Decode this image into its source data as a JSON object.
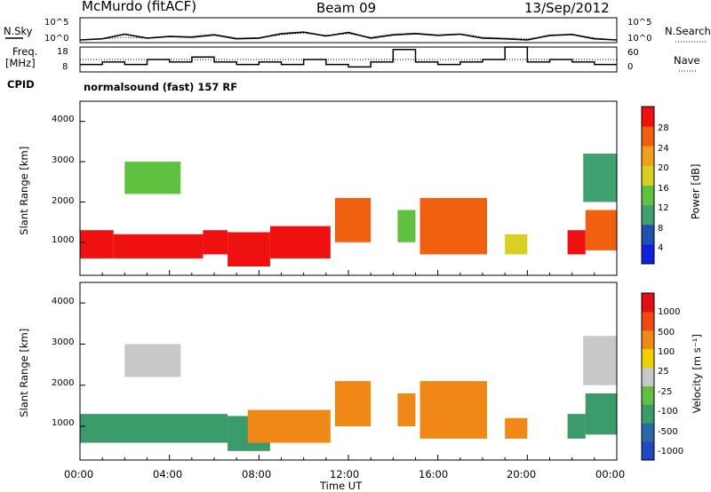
{
  "header": {
    "station": "McMurdo (fitACF)",
    "beam": "Beam 09",
    "date": "13/Sep/2012"
  },
  "panels": {
    "noise": {
      "left_label": "N.Sky",
      "right_label": "N.Search",
      "left_ticks": [
        "10^5",
        "10^0"
      ],
      "right_ticks": [
        "10^5",
        "10^0"
      ]
    },
    "freq": {
      "left_label": "Freq.",
      "left_unit": "[MHz]",
      "right_label": "Nave",
      "left_ticks": [
        "18",
        "8"
      ],
      "right_ticks": [
        "60",
        "0"
      ]
    },
    "cpid": {
      "label": "CPID",
      "text": "normalsound (fast) 157 RF"
    },
    "power": {
      "ylabel": "Slant Range [km]",
      "yticks": [
        "4000",
        "3000",
        "2000",
        "1000"
      ],
      "colorbar_label": "Power [dB]",
      "colorbar_ticks": [
        "28",
        "24",
        "20",
        "16",
        "12",
        "8",
        "4"
      ]
    },
    "velocity": {
      "ylabel": "Slant Range [km]",
      "yticks": [
        "4000",
        "3000",
        "2000",
        "1000"
      ],
      "colorbar_label": "Velocity [m s⁻¹]",
      "colorbar_ticks": [
        "1000",
        "500",
        "100",
        "25",
        "-25",
        "-100",
        "-500",
        "-1000"
      ]
    },
    "xaxis": {
      "label": "Time UT",
      "ticks": [
        "00:00",
        "04:00",
        "08:00",
        "12:00",
        "16:00",
        "20:00",
        "00:00"
      ]
    }
  },
  "colors": {
    "power_scale": [
      "#1020e0",
      "#2050b0",
      "#40a070",
      "#60c040",
      "#d8d020",
      "#f0a020",
      "#f06010",
      "#f01010"
    ],
    "velocity_scale": [
      "#2048c0",
      "#2a68a8",
      "#3a9a6a",
      "#60c040",
      "#c8c8c8",
      "#f0d000",
      "#f08818",
      "#f04810",
      "#e01010"
    ]
  },
  "chart_data": [
    {
      "type": "line",
      "title": "McMurdo (fitACF)",
      "xlabel": "",
      "ylabel": "N.Sky",
      "x": [
        "00:00",
        "01:00",
        "02:00",
        "03:00",
        "04:00",
        "05:00",
        "06:00",
        "07:00",
        "08:00",
        "09:00",
        "10:00",
        "11:00",
        "12:00",
        "13:00",
        "14:00",
        "15:00",
        "16:00",
        "17:00",
        "18:00",
        "19:00",
        "20:00",
        "21:00",
        "22:00",
        "23:00",
        "24:00"
      ],
      "series": [
        {
          "values": [
            1,
            2,
            30,
            3,
            8,
            5,
            20,
            2,
            3,
            40,
            100,
            10,
            80,
            3,
            20,
            40,
            15,
            30,
            3,
            2,
            1,
            15,
            25,
            2,
            1
          ]
        },
        {
          "values": [
            1,
            2,
            5,
            3,
            10,
            8,
            30,
            3,
            4,
            20,
            60,
            15,
            40,
            5,
            30,
            60,
            20,
            40,
            5,
            3,
            2,
            10,
            30,
            3,
            1
          ],
          "style": "dotted"
        }
      ]
    },
    {
      "type": "line",
      "xlabel": "",
      "ylabel": "Freq. [MHz]",
      "ylim": [
        8,
        18
      ],
      "x": [
        "00:00",
        "01:00",
        "02:00",
        "03:00",
        "04:00",
        "05:00",
        "06:00",
        "07:00",
        "08:00",
        "09:00",
        "10:00",
        "11:00",
        "12:00",
        "13:00",
        "14:00",
        "15:00",
        "16:00",
        "17:00",
        "18:00",
        "19:00",
        "20:00",
        "21:00",
        "22:00",
        "23:00",
        "24:00"
      ],
      "series": [
        {
          "values": [
            11,
            12,
            11,
            13,
            12,
            14,
            12,
            11,
            12,
            11,
            13,
            11,
            10,
            12,
            17,
            12,
            11,
            12,
            13,
            18,
            12,
            13,
            12,
            11,
            11
          ]
        },
        {
          "values": [
            13,
            13,
            13,
            13,
            13,
            13,
            13,
            13,
            13,
            13,
            13,
            13,
            13,
            13,
            13,
            13,
            13,
            13,
            13,
            13,
            13,
            13,
            13,
            13,
            13
          ],
          "style": "dotted"
        }
      ]
    },
    {
      "type": "heatmap",
      "xlabel": "Time UT",
      "ylabel": "Slant Range [km]",
      "ylim": [
        180,
        4500
      ],
      "quantity": "Power [dB]",
      "x_range": [
        "00:00",
        "24:00"
      ],
      "range_bands": [
        {
          "t": [
            0,
            1.5
          ],
          "r": [
            600,
            1300
          ],
          "level": 7
        },
        {
          "t": [
            1.5,
            5.5
          ],
          "r": [
            600,
            1200
          ],
          "level": 7
        },
        {
          "t": [
            5.5,
            6.6
          ],
          "r": [
            700,
            1300
          ],
          "level": 7
        },
        {
          "t": [
            6.6,
            8.5
          ],
          "r": [
            400,
            1250
          ],
          "level": 7
        },
        {
          "t": [
            8.5,
            11.2
          ],
          "r": [
            600,
            1400
          ],
          "level": 7
        },
        {
          "t": [
            11.4,
            13.0
          ],
          "r": [
            1000,
            2100
          ],
          "level": 6
        },
        {
          "t": [
            14.2,
            15.0
          ],
          "r": [
            1000,
            1800
          ],
          "level": 3
        },
        {
          "t": [
            15.2,
            18.2
          ],
          "r": [
            700,
            2100
          ],
          "level": 6
        },
        {
          "t": [
            19.0,
            20.0
          ],
          "r": [
            700,
            1200
          ],
          "level": 4
        },
        {
          "t": [
            21.8,
            22.6
          ],
          "r": [
            700,
            1300
          ],
          "level": 7
        },
        {
          "t": [
            22.6,
            24.0
          ],
          "r": [
            800,
            1800
          ],
          "level": 6
        },
        {
          "t": [
            2.0,
            4.5
          ],
          "r": [
            2200,
            3000
          ],
          "level": 3
        },
        {
          "t": [
            22.5,
            24.0
          ],
          "r": [
            2000,
            3200
          ],
          "level": 2
        }
      ]
    },
    {
      "type": "heatmap",
      "xlabel": "Time UT",
      "ylabel": "Slant Range [km]",
      "ylim": [
        180,
        4500
      ],
      "quantity": "Velocity [m s^-1]",
      "x_range": [
        "00:00",
        "24:00"
      ],
      "range_bands": [
        {
          "t": [
            0,
            6.6
          ],
          "r": [
            600,
            1300
          ],
          "level": 2
        },
        {
          "t": [
            6.6,
            8.5
          ],
          "r": [
            400,
            1250
          ],
          "level": 2
        },
        {
          "t": [
            7.5,
            11.2
          ],
          "r": [
            600,
            1400
          ],
          "level": 6
        },
        {
          "t": [
            11.4,
            13.0
          ],
          "r": [
            1000,
            2100
          ],
          "level": 6
        },
        {
          "t": [
            14.2,
            15.0
          ],
          "r": [
            1000,
            1800
          ],
          "level": 6
        },
        {
          "t": [
            15.2,
            18.2
          ],
          "r": [
            700,
            2100
          ],
          "level": 6
        },
        {
          "t": [
            19.0,
            20.0
          ],
          "r": [
            700,
            1200
          ],
          "level": 6
        },
        {
          "t": [
            21.8,
            22.6
          ],
          "r": [
            700,
            1300
          ],
          "level": 2
        },
        {
          "t": [
            22.6,
            24.0
          ],
          "r": [
            800,
            1800
          ],
          "level": 2
        },
        {
          "t": [
            2.0,
            4.5
          ],
          "r": [
            2200,
            3000
          ],
          "level": 4
        },
        {
          "t": [
            22.5,
            24.0
          ],
          "r": [
            2000,
            3200
          ],
          "level": 4
        }
      ]
    }
  ]
}
